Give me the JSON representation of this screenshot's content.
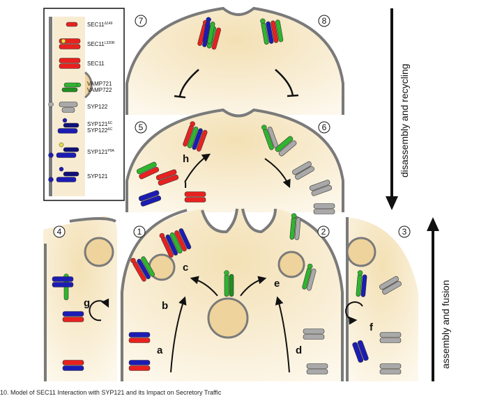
{
  "legend": {
    "items": [
      {
        "name": "SEC11",
        "sup": "Δ149"
      },
      {
        "name": "SEC11",
        "sup": "L320R"
      },
      {
        "name": "SEC11",
        "sup": ""
      },
      {
        "name": "VAMP721",
        "name2": "VAMP722",
        "sup": ""
      },
      {
        "name": "SYP122",
        "sup": ""
      },
      {
        "name": "SYP121",
        "sup": "ΔC",
        "name2": "SYP122",
        "sup2": "ΔC"
      },
      {
        "name": "SYP121",
        "sup": "P9A"
      },
      {
        "name": "SYP121",
        "sup": ""
      }
    ]
  },
  "panels": {
    "n1": "1",
    "n2": "2",
    "n3": "3",
    "n4": "4",
    "n5": "5",
    "n6": "6",
    "n7": "7",
    "n8": "8"
  },
  "letters": {
    "a": "a",
    "b": "b",
    "c": "c",
    "d": "d",
    "e": "e",
    "f": "f",
    "g": "g",
    "h": "h",
    "i": "i"
  },
  "side_labels": {
    "top": "disassembly and recycling",
    "bottom": "assembly and fusion"
  },
  "caption": "10. Model of SEC11 Interaction with SYP121 and its Impact on Secretory Traffic",
  "colors": {
    "sec11": "#e8211f",
    "vamp": "#2fb52f",
    "syp122": "#a9a9a9",
    "syp121": "#1c1cb4",
    "cytoplasm": "#f7e9c6",
    "membrane": "#7a7a7a",
    "vesicle": "#efd39c"
  }
}
